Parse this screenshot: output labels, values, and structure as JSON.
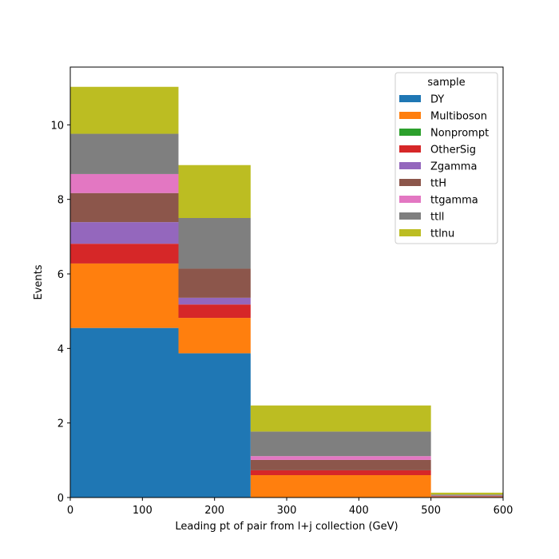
{
  "chart_data": {
    "type": "bar",
    "stacked": true,
    "histogram": true,
    "bin_edges": [
      0,
      150,
      250,
      500,
      600
    ],
    "xlabel": "Leading pt of pair from l+j collection (GeV)",
    "ylabel": "Events",
    "xlim": [
      0,
      600
    ],
    "ylim": [
      0,
      11.55
    ],
    "xticks": [
      0,
      100,
      200,
      300,
      400,
      500,
      600
    ],
    "yticks": [
      0,
      2,
      4,
      6,
      8,
      10
    ],
    "grid": false,
    "legend": {
      "title": "sample",
      "placement": "top-right"
    },
    "series": [
      {
        "name": "DY",
        "color": "#1f77b4",
        "values": [
          4.55,
          3.87,
          0.0,
          0.0
        ]
      },
      {
        "name": "Multiboson",
        "color": "#ff7f0e",
        "values": [
          1.73,
          0.95,
          0.6,
          0.02
        ]
      },
      {
        "name": "Nonprompt",
        "color": "#2ca02c",
        "values": [
          0.0,
          0.0,
          0.0,
          0.0
        ]
      },
      {
        "name": "OtherSig",
        "color": "#d62728",
        "values": [
          0.53,
          0.36,
          0.13,
          0.01
        ]
      },
      {
        "name": "Zgamma",
        "color": "#9467bd",
        "values": [
          0.58,
          0.18,
          0.0,
          0.0
        ]
      },
      {
        "name": "ttH",
        "color": "#8c564b",
        "values": [
          0.78,
          0.78,
          0.28,
          0.01
        ]
      },
      {
        "name": "ttgamma",
        "color": "#e377c2",
        "values": [
          0.51,
          0.0,
          0.1,
          0.01
        ]
      },
      {
        "name": "ttll",
        "color": "#7f7f7f",
        "values": [
          1.08,
          1.36,
          0.66,
          0.03
        ]
      },
      {
        "name": "ttlnu",
        "color": "#bcbd22",
        "values": [
          1.26,
          1.42,
          0.7,
          0.05
        ]
      }
    ]
  }
}
